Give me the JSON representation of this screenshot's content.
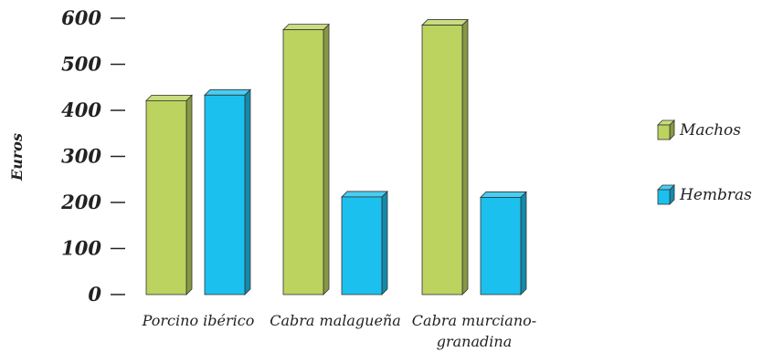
{
  "chart_data": {
    "type": "bar",
    "categories": [
      [
        "Porcino ibérico"
      ],
      [
        "Cabra malagueña"
      ],
      [
        "Cabra murciano-",
        "granadina"
      ]
    ],
    "series": [
      {
        "name": "Machos",
        "values": [
          421,
          575,
          585
        ],
        "color": "#bcd35f"
      },
      {
        "name": "Hembras",
        "values": [
          433,
          212,
          211
        ],
        "color": "#1cc0ee"
      }
    ],
    "yticks": [
      0,
      100,
      200,
      300,
      400,
      500,
      600
    ],
    "ylim": [
      0,
      600
    ],
    "ylabel": "Euros",
    "xlabel": "",
    "title": "",
    "grid": false,
    "legend_position": "right"
  }
}
